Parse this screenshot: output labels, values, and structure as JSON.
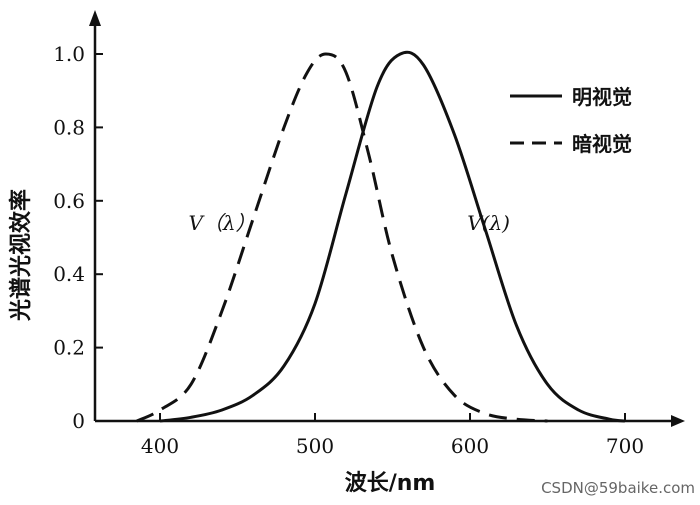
{
  "chart_data": {
    "type": "line",
    "xlabel": "波长/nm",
    "ylabel": "光谱光视效率",
    "xlim": [
      350,
      750
    ],
    "ylim": [
      0,
      1.1
    ],
    "x_ticks": [
      400,
      500,
      600,
      700
    ],
    "x_tick_labels": [
      "400",
      "500",
      "600",
      "700"
    ],
    "y_ticks": [
      0,
      0.2,
      0.4,
      0.6,
      0.8,
      1.0
    ],
    "y_tick_labels": [
      "0",
      "0.2",
      "0.4",
      "0.6",
      "0.8",
      "1.0"
    ],
    "legend_position": "top-right",
    "grid": false,
    "series": [
      {
        "name": "明视觉",
        "style": "solid",
        "x": [
          400,
          420,
          440,
          460,
          480,
          500,
          520,
          540,
          555,
          570,
          590,
          610,
          630,
          650,
          670,
          690,
          700
        ],
        "y": [
          0.0,
          0.01,
          0.03,
          0.07,
          0.15,
          0.32,
          0.62,
          0.91,
          1.0,
          0.97,
          0.78,
          0.52,
          0.26,
          0.1,
          0.03,
          0.005,
          0.0
        ]
      },
      {
        "name": "暗视觉",
        "style": "dashed",
        "x": [
          385,
          400,
          420,
          440,
          460,
          480,
          495,
          507,
          520,
          535,
          550,
          570,
          590,
          610,
          630,
          650
        ],
        "y": [
          0.0,
          0.03,
          0.1,
          0.3,
          0.55,
          0.8,
          0.95,
          1.0,
          0.95,
          0.72,
          0.45,
          0.2,
          0.07,
          0.02,
          0.005,
          0.0
        ]
      }
    ],
    "annotations": [
      {
        "text": "V（λ）",
        "x": 440,
        "y": 0.52
      },
      {
        "text": "V(λ)",
        "x": 612,
        "y": 0.52
      }
    ]
  },
  "watermark": "CSDN@59baike.com"
}
